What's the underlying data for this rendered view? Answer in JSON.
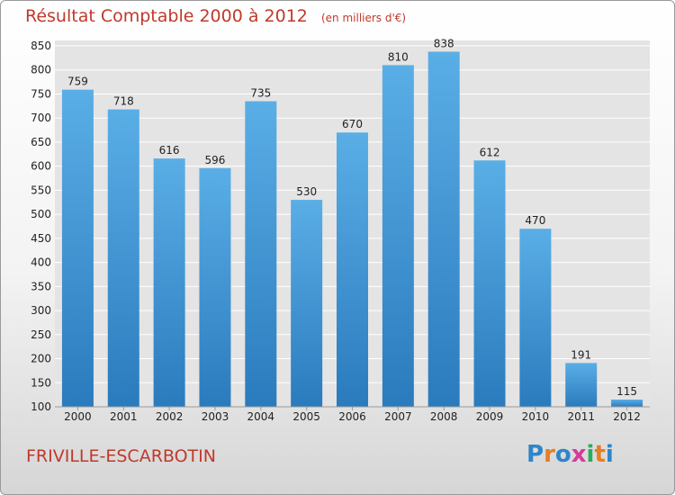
{
  "colors": {
    "title": "#c0392b",
    "bar_light": "#5aaee6",
    "bar_dark": "#2a7bbd",
    "plot_bg": "#e4e4e4",
    "grid": "#ffffff"
  },
  "header": {
    "title": "Résultat Comptable 2000 à 2012",
    "subtitle": "(en milliers d'€)"
  },
  "footer": {
    "city": "FRIVILLE-ESCARBOTIN",
    "logo_letters": [
      {
        "ch": "P",
        "color": "#2e86c9"
      },
      {
        "ch": "r",
        "color": "#e67e22"
      },
      {
        "ch": "o",
        "color": "#2e86c9"
      },
      {
        "ch": "x",
        "color": "#d63b9b"
      },
      {
        "ch": "i",
        "color": "#27ae60"
      },
      {
        "ch": "t",
        "color": "#e67e22"
      },
      {
        "ch": "i",
        "color": "#2e86c9"
      }
    ]
  },
  "chart_data": {
    "type": "bar",
    "title": "Résultat Comptable 2000 à 2012",
    "xlabel": "",
    "ylabel": "",
    "categories": [
      "2000",
      "2001",
      "2002",
      "2003",
      "2004",
      "2005",
      "2006",
      "2007",
      "2008",
      "2009",
      "2010",
      "2011",
      "2012"
    ],
    "values": [
      759,
      718,
      616,
      596,
      735,
      530,
      670,
      810,
      838,
      612,
      470,
      191,
      115
    ],
    "ylim": [
      100,
      850
    ],
    "yticks": [
      100,
      150,
      200,
      250,
      300,
      350,
      400,
      450,
      500,
      550,
      600,
      650,
      700,
      750,
      800,
      850
    ],
    "grid": true,
    "legend": "none"
  }
}
